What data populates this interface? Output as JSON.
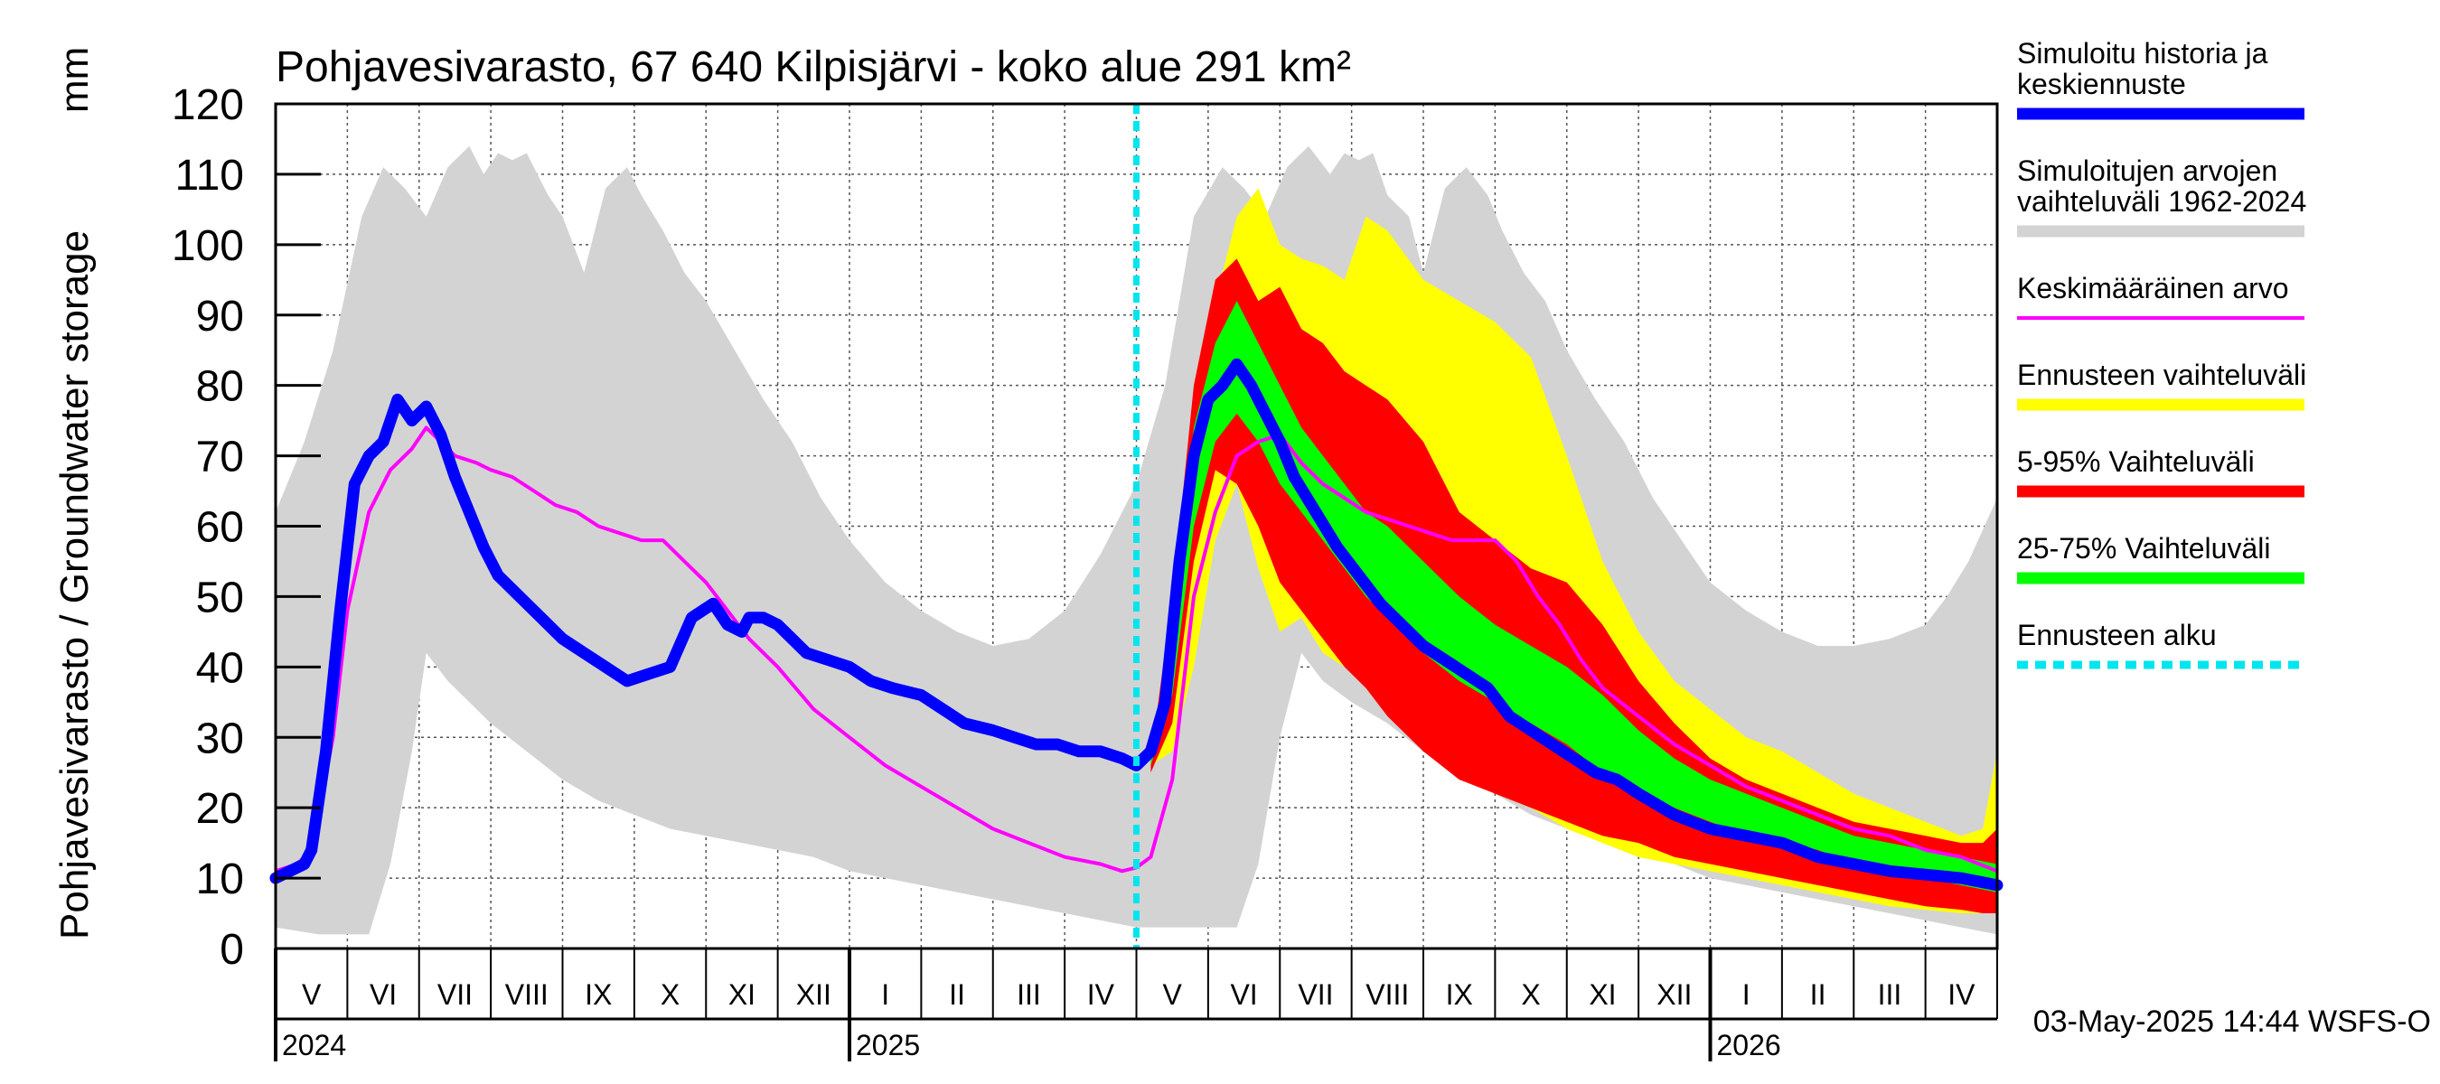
{
  "chart_data": {
    "type": "area",
    "title": "Pohjavesivarasto, 67 640 Kilpisjärvi - koko alue 291 km²",
    "ylabel": "Pohjavesivarasto / Groundwater storage",
    "yunit": "mm",
    "ylim": [
      0,
      120
    ],
    "yticks": [
      0,
      10,
      20,
      30,
      40,
      50,
      60,
      70,
      80,
      90,
      100,
      110,
      120
    ],
    "x_unit": "months since 2024-05-01",
    "xlim": [
      0,
      24
    ],
    "forecast_start": 12.0,
    "months": [
      "V",
      "VI",
      "VII",
      "VIII",
      "IX",
      "X",
      "XI",
      "XII",
      "I",
      "II",
      "III",
      "IV",
      "V",
      "VI",
      "VII",
      "VIII",
      "IX",
      "X",
      "XI",
      "XII",
      "I",
      "II",
      "III",
      "IV"
    ],
    "years": [
      {
        "label": "2024",
        "x": 0
      },
      {
        "label": "2025",
        "x": 8
      },
      {
        "label": "2026",
        "x": 20
      }
    ],
    "timestamp": "03-May-2025 14:44 WSFS-O",
    "legend": [
      {
        "label": "Simuloitu historia ja keskiennuste",
        "color": "#0000ff",
        "style": "thick"
      },
      {
        "label": "Simuloitujen arvojen vaihteluväli 1962-2024",
        "color": "#d3d3d3",
        "style": "thick"
      },
      {
        "label": "Keskimääräinen arvo",
        "color": "#ff00ff",
        "style": "thin"
      },
      {
        "label": "Ennusteen vaihteluväli",
        "color": "#ffff00",
        "style": "thick"
      },
      {
        "label": "5-95% Vaihteluväli",
        "color": "#ff0000",
        "style": "thick"
      },
      {
        "label": "25-75% Vaihteluväli",
        "color": "#00ff00",
        "style": "thick"
      },
      {
        "label": "Ennusteen alku",
        "color": "#00e5ee",
        "style": "dashed"
      }
    ],
    "series": [
      {
        "name": "hist_range_upper",
        "color": "#d3d3d3",
        "x": [
          0,
          0.4,
          0.8,
          1.2,
          1.5,
          1.8,
          2.1,
          2.4,
          2.7,
          2.9,
          3.1,
          3.3,
          3.5,
          3.8,
          4.0,
          4.3,
          4.6,
          4.9,
          5.1,
          5.4,
          5.7,
          6.0,
          6.4,
          6.8,
          7.2,
          7.6,
          8.0,
          8.5,
          9.0,
          9.5,
          10.0,
          10.5,
          11.0,
          11.5,
          12.0,
          12.4,
          12.8,
          13.2,
          13.5,
          13.8,
          14.1,
          14.4,
          14.7,
          14.9,
          15.1,
          15.3,
          15.5,
          15.8,
          16.0,
          16.3,
          16.6,
          16.9,
          17.1,
          17.4,
          17.7,
          18.0,
          18.4,
          18.8,
          19.2,
          19.6,
          20.0,
          20.5,
          21.0,
          21.5,
          22.0,
          22.5,
          23.0,
          23.3,
          23.6,
          24.0
        ],
        "values": [
          62,
          72,
          85,
          104,
          111,
          108,
          104,
          111,
          114,
          110,
          113,
          112,
          113,
          107,
          104,
          96,
          108,
          111,
          107,
          102,
          96,
          92,
          85,
          78,
          72,
          64,
          58,
          52,
          48,
          45,
          43,
          44,
          48,
          56,
          66,
          80,
          104,
          111,
          108,
          104,
          111,
          114,
          110,
          113,
          112,
          113,
          107,
          104,
          96,
          108,
          111,
          107,
          102,
          96,
          92,
          85,
          78,
          72,
          64,
          58,
          52,
          48,
          45,
          43,
          43,
          44,
          46,
          50,
          55,
          64
        ]
      },
      {
        "name": "hist_range_lower",
        "color": "#d3d3d3",
        "x": [
          0,
          0.6,
          1.0,
          1.3,
          1.6,
          1.9,
          2.1,
          2.4,
          2.7,
          3.0,
          3.5,
          4.0,
          4.5,
          5.0,
          5.5,
          6.0,
          6.5,
          7.0,
          7.5,
          8.0,
          8.5,
          9.0,
          9.5,
          10.0,
          10.5,
          11.0,
          11.5,
          12.0,
          12.6,
          13.1,
          13.4,
          13.7,
          14.0,
          14.3,
          14.6,
          15.0,
          15.5,
          16.0,
          16.5,
          17.0,
          17.5,
          18.0,
          18.5,
          19.0,
          19.5,
          20.0,
          20.5,
          21.0,
          21.5,
          22.0,
          22.5,
          23.0,
          23.5,
          24.0
        ],
        "values": [
          3,
          2,
          2,
          2,
          12,
          28,
          42,
          38,
          35,
          32,
          28,
          24,
          21,
          19,
          17,
          16,
          15,
          14,
          13,
          11,
          10,
          9,
          8,
          7,
          6,
          5,
          4,
          3,
          3,
          3,
          3,
          12,
          30,
          42,
          38,
          35,
          32,
          28,
          25,
          22,
          19,
          17,
          15,
          13,
          12,
          10,
          9,
          8,
          7,
          6,
          5,
          4,
          3,
          2
        ]
      },
      {
        "name": "forecast_range_upper",
        "color": "#ffff00",
        "x": [
          12.2,
          12.5,
          12.8,
          13.1,
          13.4,
          13.7,
          14.0,
          14.3,
          14.6,
          14.9,
          15.2,
          15.5,
          16.0,
          16.5,
          17.0,
          17.5,
          18.0,
          18.5,
          19.0,
          19.5,
          20.0,
          20.5,
          21.0,
          21.5,
          22.0,
          22.5,
          23.0,
          23.5,
          23.8,
          24.0
        ],
        "values": [
          26,
          50,
          72,
          92,
          104,
          108,
          100,
          98,
          97,
          95,
          104,
          102,
          95,
          92,
          89,
          84,
          70,
          55,
          45,
          38,
          34,
          30,
          28,
          25,
          22,
          20,
          18,
          16,
          17,
          28
        ]
      },
      {
        "name": "forecast_range_lower",
        "color": "#ffff00",
        "x": [
          12.2,
          12.5,
          12.8,
          13.1,
          13.4,
          13.7,
          14.0,
          14.3,
          14.6,
          14.9,
          15.2,
          15.5,
          16.0,
          16.5,
          17.0,
          17.5,
          18.0,
          18.5,
          19.0,
          19.5,
          20.0,
          20.5,
          21.0,
          21.5,
          22.0,
          22.5,
          23.0,
          23.5,
          23.8,
          24.0
        ],
        "values": [
          26,
          28,
          40,
          58,
          66,
          54,
          45,
          47,
          42,
          40,
          38,
          34,
          29,
          25,
          22,
          20,
          17,
          15,
          13,
          12,
          11,
          10,
          9,
          8,
          7,
          6,
          5.5,
          5,
          5,
          5
        ]
      },
      {
        "name": "p5_95_upper",
        "color": "#ff0000",
        "x": [
          12.2,
          12.5,
          12.8,
          13.1,
          13.4,
          13.7,
          14.0,
          14.3,
          14.6,
          14.9,
          15.2,
          15.5,
          16.0,
          16.5,
          17.0,
          17.5,
          18.0,
          18.5,
          19.0,
          19.5,
          20.0,
          20.5,
          21.0,
          21.5,
          22.0,
          22.5,
          23.0,
          23.5,
          23.8,
          24.0
        ],
        "values": [
          27,
          50,
          80,
          95,
          98,
          92,
          94,
          88,
          86,
          82,
          80,
          78,
          72,
          62,
          58,
          54,
          52,
          46,
          38,
          32,
          27,
          24,
          22,
          20,
          18,
          17,
          16,
          15,
          15,
          17
        ]
      },
      {
        "name": "p5_95_lower",
        "color": "#ff0000",
        "x": [
          12.2,
          12.5,
          12.8,
          13.1,
          13.4,
          13.7,
          14.0,
          14.3,
          14.6,
          14.9,
          15.2,
          15.5,
          16.0,
          16.5,
          17.0,
          17.5,
          18.0,
          18.5,
          19.0,
          19.5,
          20.0,
          20.5,
          21.0,
          21.5,
          22.0,
          22.5,
          23.0,
          23.5,
          23.8,
          24.0
        ],
        "values": [
          25,
          32,
          55,
          68,
          66,
          60,
          52,
          48,
          44,
          40,
          37,
          33,
          28,
          24,
          22,
          20,
          18,
          16,
          15,
          13,
          12,
          11,
          10,
          9,
          8,
          7,
          6,
          5.5,
          5,
          5
        ]
      },
      {
        "name": "p25_75_upper",
        "color": "#00ff00",
        "x": [
          12.2,
          12.5,
          12.8,
          13.1,
          13.4,
          13.7,
          14.0,
          14.3,
          14.6,
          14.9,
          15.2,
          15.5,
          16.0,
          16.5,
          17.0,
          17.5,
          18.0,
          18.5,
          19.0,
          19.5,
          20.0,
          20.5,
          21.0,
          21.5,
          22.0,
          22.5,
          23.0,
          23.5,
          24.0
        ],
        "values": [
          27,
          44,
          74,
          86,
          92,
          86,
          80,
          74,
          70,
          66,
          62,
          60,
          55,
          50,
          46,
          43,
          40,
          36,
          31,
          27,
          24,
          22,
          20,
          18,
          16,
          15,
          14,
          13,
          12
        ]
      },
      {
        "name": "p25_75_lower",
        "color": "#00ff00",
        "x": [
          12.2,
          12.5,
          12.8,
          13.1,
          13.4,
          13.7,
          14.0,
          14.3,
          14.6,
          14.9,
          15.2,
          15.5,
          16.0,
          16.5,
          17.0,
          17.5,
          18.0,
          18.5,
          19.0,
          19.5,
          20.0,
          20.5,
          21.0,
          21.5,
          22.0,
          22.5,
          23.0,
          23.5,
          24.0
        ],
        "values": [
          26,
          36,
          60,
          72,
          76,
          72,
          66,
          62,
          58,
          54,
          50,
          47,
          42,
          38,
          35,
          32,
          29,
          25,
          22,
          20,
          18,
          16,
          15,
          14,
          12,
          11,
          10,
          9,
          8
        ]
      },
      {
        "name": "mean",
        "color": "#ff00ff",
        "x": [
          0,
          0.3,
          0.5,
          0.8,
          1.0,
          1.3,
          1.6,
          1.9,
          2.1,
          2.3,
          2.5,
          2.8,
          3.0,
          3.3,
          3.6,
          3.9,
          4.2,
          4.5,
          4.8,
          5.1,
          5.4,
          5.7,
          6.0,
          6.3,
          6.6,
          7.0,
          7.5,
          8.0,
          8.5,
          9.0,
          9.5,
          10.0,
          10.5,
          11.0,
          11.5,
          11.8,
          12.0,
          12.2,
          12.5,
          12.8,
          13.1,
          13.4,
          13.7,
          14.0,
          14.3,
          14.6,
          14.9,
          15.2,
          15.5,
          15.8,
          16.1,
          16.4,
          16.7,
          17.0,
          17.3,
          17.6,
          17.9,
          18.2,
          18.5,
          19.0,
          19.5,
          20.0,
          20.5,
          21.0,
          21.5,
          22.0,
          22.5,
          23.0,
          23.5,
          24.0
        ],
        "values": [
          11,
          12,
          14,
          30,
          48,
          62,
          68,
          71,
          74,
          72,
          70,
          69,
          68,
          67,
          65,
          63,
          62,
          60,
          59,
          58,
          58,
          55,
          52,
          48,
          44,
          40,
          34,
          30,
          26,
          23,
          20,
          17,
          15,
          13,
          12,
          11,
          11.5,
          13,
          24,
          50,
          62,
          70,
          72,
          73,
          69,
          66,
          64,
          62,
          61,
          60,
          59,
          58,
          58,
          58,
          55,
          50,
          46,
          41,
          37,
          33,
          29,
          26,
          23,
          21,
          19,
          17,
          16,
          14,
          13,
          11
        ]
      },
      {
        "name": "simulated_history_and_forecast",
        "color": "#0000ff",
        "x": [
          0,
          0.2,
          0.4,
          0.5,
          0.7,
          0.9,
          1.1,
          1.3,
          1.5,
          1.7,
          1.9,
          2.1,
          2.3,
          2.5,
          2.7,
          2.9,
          3.1,
          3.4,
          3.7,
          4.0,
          4.3,
          4.6,
          4.9,
          5.2,
          5.5,
          5.8,
          6.1,
          6.3,
          6.5,
          6.6,
          6.8,
          7.0,
          7.2,
          7.4,
          7.7,
          8.0,
          8.3,
          8.6,
          9.0,
          9.3,
          9.6,
          10.0,
          10.3,
          10.6,
          10.9,
          11.2,
          11.5,
          11.8,
          12.0,
          12.2,
          12.4,
          12.6,
          12.8,
          13.0,
          13.2,
          13.4,
          13.6,
          13.8,
          14.0,
          14.2,
          14.5,
          14.8,
          15.1,
          15.4,
          15.7,
          16.0,
          16.3,
          16.6,
          16.9,
          17.2,
          17.5,
          17.8,
          18.1,
          18.4,
          18.7,
          19.0,
          19.5,
          20.0,
          20.5,
          21.0,
          21.5,
          22.0,
          22.5,
          23.0,
          23.5,
          24.0
        ],
        "values": [
          10,
          11,
          12,
          14,
          28,
          48,
          66,
          70,
          72,
          78,
          75,
          77,
          73,
          67,
          62,
          57,
          53,
          50,
          47,
          44,
          42,
          40,
          38,
          39,
          40,
          47,
          49,
          46,
          45,
          47,
          47,
          46,
          44,
          42,
          41,
          40,
          38,
          37,
          36,
          34,
          32,
          31,
          30,
          29,
          29,
          28,
          28,
          27,
          26,
          28,
          35,
          55,
          70,
          78,
          80,
          83,
          80,
          76,
          72,
          67,
          62,
          57,
          53,
          49,
          46,
          43,
          41,
          39,
          37,
          33,
          31,
          29,
          27,
          25,
          24,
          22,
          19,
          17,
          16,
          15,
          13,
          12,
          11,
          10.5,
          10,
          9
        ]
      }
    ]
  }
}
